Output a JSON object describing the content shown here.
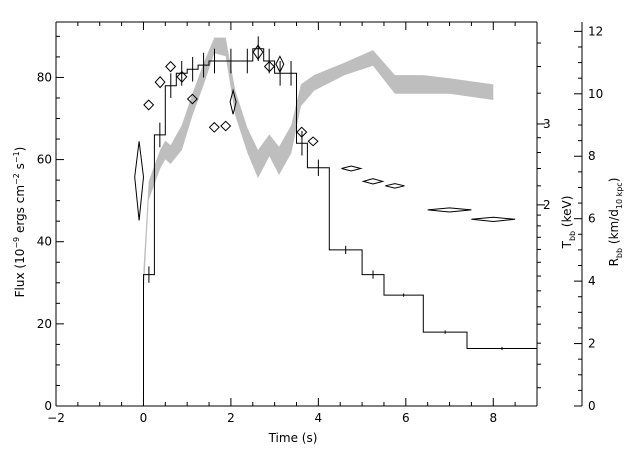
{
  "chart_data": {
    "type": "line",
    "title": "",
    "xlabel": "Time (s)",
    "ylabel": {
      "main": "Flux (10",
      "sup1": "−9",
      "mid": " ergs cm",
      "sup2": "−2",
      "mid2": " s",
      "sup3": "−1",
      "end": ")"
    },
    "y2label": {
      "main": "T",
      "sub": "bb",
      "end": " (keV)"
    },
    "y3label": {
      "main": "R",
      "sub": "bb",
      "mid": " (km/d",
      "sub2": "10 kpc",
      "end": ")"
    },
    "xlim": [
      -2,
      9
    ],
    "ylim": [
      0,
      93.5
    ],
    "xticks": [
      -2,
      0,
      2,
      4,
      6,
      8
    ],
    "yticks": [
      0,
      20,
      40,
      60,
      80
    ],
    "temp_axis": {
      "scale": "log",
      "range": [
        0.73,
        5.0
      ],
      "major_ticks": [
        2,
        3
      ],
      "tick_labels": [
        "2",
        "3"
      ]
    },
    "radius_axis": {
      "range": [
        0,
        12.3
      ],
      "ticks": [
        0,
        2,
        4,
        6,
        8,
        10,
        12
      ],
      "tick_labels": [
        "0",
        "2",
        "4",
        "6",
        "8",
        "10",
        "12"
      ]
    },
    "grid": false,
    "series": [
      {
        "kind": "flux_histogram",
        "color": "#000000",
        "steps": [
          {
            "x0": -0.05,
            "x1": 0.0,
            "y": 0
          },
          {
            "x0": 0.0,
            "x1": 0.25,
            "y": 32
          },
          {
            "x0": 0.25,
            "x1": 0.5,
            "y": 66
          },
          {
            "x0": 0.5,
            "x1": 0.75,
            "y": 78
          },
          {
            "x0": 0.75,
            "x1": 1.0,
            "y": 81
          },
          {
            "x0": 1.0,
            "x1": 1.25,
            "y": 82
          },
          {
            "x0": 1.25,
            "x1": 1.5,
            "y": 83
          },
          {
            "x0": 1.5,
            "x1": 1.75,
            "y": 84
          },
          {
            "x0": 1.75,
            "x1": 2.25,
            "y": 84
          },
          {
            "x0": 2.25,
            "x1": 2.5,
            "y": 84
          },
          {
            "x0": 2.5,
            "x1": 2.75,
            "y": 87
          },
          {
            "x0": 2.75,
            "x1": 3.0,
            "y": 84
          },
          {
            "x0": 3.0,
            "x1": 3.25,
            "y": 81
          },
          {
            "x0": 3.25,
            "x1": 3.5,
            "y": 81
          },
          {
            "x0": 3.5,
            "x1": 3.75,
            "y": 64
          },
          {
            "x0": 3.75,
            "x1": 4.25,
            "y": 58
          },
          {
            "x0": 4.25,
            "x1": 5.0,
            "y": 38
          },
          {
            "x0": 5.0,
            "x1": 5.5,
            "y": 32
          },
          {
            "x0": 5.5,
            "x1": 6.4,
            "y": 27
          },
          {
            "x0": 6.4,
            "x1": 7.4,
            "y": 18
          },
          {
            "x0": 7.4,
            "x1": 9.0,
            "y": 14
          }
        ],
        "error_bars": [
          {
            "x": 0.125,
            "y": 32,
            "err": 2
          },
          {
            "x": 0.375,
            "y": 66,
            "err": 3
          },
          {
            "x": 0.625,
            "y": 78,
            "err": 3
          },
          {
            "x": 0.875,
            "y": 81,
            "err": 3
          },
          {
            "x": 1.125,
            "y": 82,
            "err": 3
          },
          {
            "x": 1.375,
            "y": 83,
            "err": 3
          },
          {
            "x": 1.625,
            "y": 84,
            "err": 3
          },
          {
            "x": 2.0,
            "y": 84,
            "err": 3
          },
          {
            "x": 2.375,
            "y": 84,
            "err": 3
          },
          {
            "x": 2.625,
            "y": 87,
            "err": 3
          },
          {
            "x": 2.875,
            "y": 84,
            "err": 3
          },
          {
            "x": 3.125,
            "y": 81,
            "err": 3
          },
          {
            "x": 3.375,
            "y": 81,
            "err": 3
          },
          {
            "x": 3.625,
            "y": 64,
            "err": 3
          },
          {
            "x": 4.0,
            "y": 58,
            "err": 2
          },
          {
            "x": 4.625,
            "y": 38,
            "err": 1
          },
          {
            "x": 5.25,
            "y": 32,
            "err": 1
          },
          {
            "x": 5.95,
            "y": 27,
            "err": 0.4
          },
          {
            "x": 6.9,
            "y": 18,
            "err": 0.4
          },
          {
            "x": 8.2,
            "y": 14,
            "err": 0.4
          }
        ]
      },
      {
        "kind": "temperature_diamonds",
        "color": "#000000",
        "points": [
          {
            "x": -0.1,
            "t": 2.3,
            "xerr": 0.1,
            "terr": 0.45
          },
          {
            "x": 0.12,
            "t": 3.3,
            "xerr": 0.11,
            "terr": 0.08
          },
          {
            "x": 0.38,
            "t": 3.7,
            "xerr": 0.11,
            "terr": 0.1
          },
          {
            "x": 0.62,
            "t": 4.0,
            "xerr": 0.11,
            "terr": 0.1
          },
          {
            "x": 0.88,
            "t": 3.8,
            "xerr": 0.11,
            "terr": 0.1
          },
          {
            "x": 1.12,
            "t": 3.4,
            "xerr": 0.11,
            "terr": 0.08
          },
          {
            "x": 1.62,
            "t": 2.95,
            "xerr": 0.11,
            "terr": 0.07
          },
          {
            "x": 1.88,
            "t": 2.97,
            "xerr": 0.11,
            "terr": 0.07
          },
          {
            "x": 2.05,
            "t": 3.35,
            "xerr": 0.06,
            "terr": 0.2
          },
          {
            "x": 2.62,
            "t": 4.3,
            "xerr": 0.11,
            "terr": 0.15
          },
          {
            "x": 2.88,
            "t": 4.0,
            "xerr": 0.11,
            "terr": 0.1
          },
          {
            "x": 3.12,
            "t": 4.05,
            "xerr": 0.09,
            "terr": 0.16
          },
          {
            "x": 3.62,
            "t": 2.88,
            "xerr": 0.11,
            "terr": 0.07
          },
          {
            "x": 3.88,
            "t": 2.75,
            "xerr": 0.11,
            "terr": 0.06
          },
          {
            "x": 4.75,
            "t": 2.4,
            "xerr": 0.22,
            "terr": 0.03
          },
          {
            "x": 5.25,
            "t": 2.25,
            "xerr": 0.22,
            "terr": 0.03
          },
          {
            "x": 5.75,
            "t": 2.2,
            "xerr": 0.22,
            "terr": 0.025
          },
          {
            "x": 7.0,
            "t": 1.95,
            "xerr": 0.5,
            "terr": 0.02
          },
          {
            "x": 8.0,
            "t": 1.86,
            "xerr": 0.5,
            "terr": 0.02
          }
        ]
      },
      {
        "kind": "radius_band",
        "color": "#bebebe",
        "x": [
          0.0,
          0.12,
          0.38,
          0.5,
          0.62,
          0.88,
          1.12,
          1.38,
          1.62,
          1.88,
          2.1,
          2.38,
          2.62,
          2.88,
          3.1,
          3.38,
          3.6,
          3.9,
          4.6,
          5.25,
          5.75,
          6.4,
          7.0,
          8.0
        ],
        "r_low": [
          3.5,
          6.6,
          7.6,
          7.9,
          7.75,
          8.2,
          9.3,
          10.3,
          11.3,
          11.2,
          9.3,
          8.1,
          7.3,
          8.0,
          7.4,
          8.1,
          9.6,
          10.1,
          10.6,
          10.9,
          10.0,
          10.0,
          10.0,
          9.8
        ],
        "r_high": [
          4.4,
          7.2,
          8.2,
          8.5,
          8.35,
          9.0,
          10.0,
          11.0,
          11.8,
          11.8,
          10.1,
          8.9,
          8.2,
          8.7,
          8.3,
          9.0,
          10.3,
          10.6,
          11.0,
          11.4,
          10.6,
          10.6,
          10.5,
          10.3
        ]
      }
    ]
  }
}
